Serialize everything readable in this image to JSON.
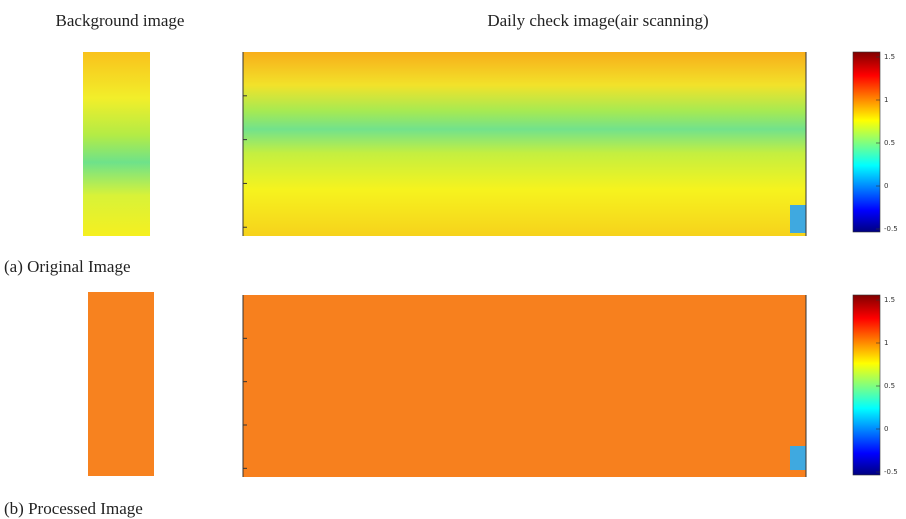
{
  "headers": [
    "Background image",
    "Daily check image(air scanning)"
  ],
  "panels": [
    {
      "caption": "(a) Original Image",
      "colorbar": {
        "clim": [
          -0.5,
          1.5
        ],
        "ticks": [
          -0.5,
          0,
          0.5,
          1,
          1.5
        ]
      }
    },
    {
      "caption": "(b) Processed Image",
      "colorbar": {
        "clim": [
          -0.5,
          1.5
        ],
        "ticks": [
          -0.5,
          0,
          0.5,
          1,
          1.5
        ]
      }
    }
  ]
}
